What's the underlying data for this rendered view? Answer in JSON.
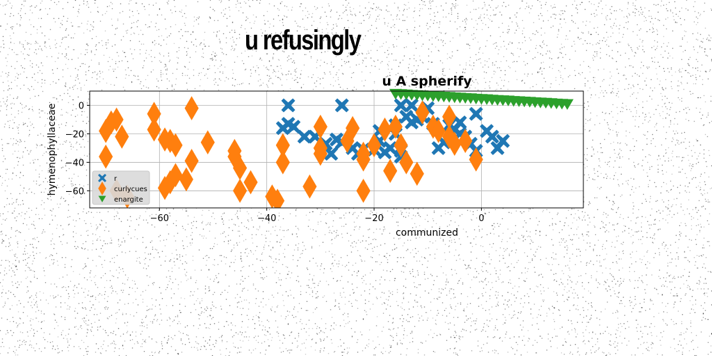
{
  "figure_title": "u refusingly",
  "colors": {
    "series_blue": "#1f77b4",
    "series_orange": "#ff7f0e",
    "series_green": "#2ca02c",
    "grid": "#b0b0b0"
  },
  "chart_data": {
    "type": "scatter",
    "title": "u A spherify",
    "xlabel": "communized",
    "ylabel": "hymenophyllaceae",
    "xlim": [
      -73,
      19
    ],
    "ylim": [
      -72,
      10
    ],
    "xticks": [
      -60,
      -40,
      -20,
      0
    ],
    "yticks": [
      0,
      -20,
      -40,
      -60
    ],
    "xtick_labels": [
      "−60",
      "−40",
      "−20",
      "0"
    ],
    "ytick_labels": [
      "0",
      "−20",
      "−40",
      "−60"
    ],
    "grid": true,
    "legend_position": "lower-left",
    "series": [
      {
        "name": "r",
        "marker": "X",
        "color": "#1f77b4",
        "points": [
          [
            -36,
            0
          ],
          [
            -26,
            0
          ],
          [
            -36,
            -13
          ],
          [
            -35,
            -15
          ],
          [
            -37,
            -16
          ],
          [
            -33,
            -22
          ],
          [
            -31,
            -22
          ],
          [
            -29,
            -27
          ],
          [
            -28,
            -34
          ],
          [
            -27,
            -24
          ],
          [
            -26,
            -26
          ],
          [
            -24,
            -30
          ],
          [
            -23,
            -34
          ],
          [
            -22,
            -31
          ],
          [
            -20,
            -31
          ],
          [
            -19,
            -18
          ],
          [
            -19,
            -25
          ],
          [
            -18,
            -33
          ],
          [
            -16,
            -20
          ],
          [
            -17,
            -30
          ],
          [
            -15,
            -32
          ],
          [
            -15,
            -36
          ],
          [
            -15,
            0
          ],
          [
            -14,
            -8
          ],
          [
            -13,
            0
          ],
          [
            -12,
            -10
          ],
          [
            -11,
            -8
          ],
          [
            -10,
            -2
          ],
          [
            -9,
            -13
          ],
          [
            -8,
            -30
          ],
          [
            -7,
            -26
          ],
          [
            -6,
            -14
          ],
          [
            -5,
            -17
          ],
          [
            -4,
            -12
          ],
          [
            -4,
            -20
          ],
          [
            -3,
            -22
          ],
          [
            -2,
            -27
          ],
          [
            -1,
            -6
          ],
          [
            -1,
            -32
          ],
          [
            1,
            -18
          ],
          [
            2,
            -22
          ],
          [
            3,
            -30
          ],
          [
            4,
            -25
          ],
          [
            -16,
            -14
          ],
          [
            -13,
            -12
          ]
        ]
      },
      {
        "name": "curlycues",
        "marker": "d",
        "color": "#ff7f0e",
        "points": [
          [
            -70,
            -18
          ],
          [
            -69,
            -12
          ],
          [
            -68,
            -10
          ],
          [
            -67,
            -22
          ],
          [
            -70,
            -36
          ],
          [
            -68,
            -60
          ],
          [
            -66,
            -64
          ],
          [
            -61,
            -6
          ],
          [
            -61,
            -17
          ],
          [
            -59,
            -24
          ],
          [
            -59,
            -58
          ],
          [
            -58,
            -25
          ],
          [
            -58,
            -54
          ],
          [
            -57,
            -28
          ],
          [
            -57,
            -49
          ],
          [
            -55,
            -52
          ],
          [
            -54,
            -2
          ],
          [
            -54,
            -39
          ],
          [
            -51,
            -26
          ],
          [
            -46,
            -32
          ],
          [
            -46,
            -36
          ],
          [
            -45,
            -44
          ],
          [
            -45,
            -60
          ],
          [
            -43,
            -54
          ],
          [
            -39,
            -64
          ],
          [
            -38,
            -67
          ],
          [
            -37,
            -28
          ],
          [
            -37,
            -40
          ],
          [
            -32,
            -57
          ],
          [
            -30,
            -15
          ],
          [
            -30,
            -30
          ],
          [
            -30,
            -34
          ],
          [
            -25,
            -25
          ],
          [
            -24,
            -16
          ],
          [
            -22,
            -38
          ],
          [
            -22,
            -34
          ],
          [
            -22,
            -60
          ],
          [
            -20,
            -28
          ],
          [
            -18,
            -17
          ],
          [
            -17,
            -46
          ],
          [
            -16,
            -15
          ],
          [
            -15,
            -28
          ],
          [
            -14,
            -40
          ],
          [
            -12,
            -48
          ],
          [
            -11,
            -5
          ],
          [
            -9,
            -15
          ],
          [
            -8,
            -18
          ],
          [
            -6,
            -8
          ],
          [
            -6,
            -22
          ],
          [
            -5,
            -27
          ],
          [
            -3,
            -25
          ],
          [
            -1,
            -38
          ]
        ]
      },
      {
        "name": "enargite",
        "marker": "v",
        "color": "#2ca02c",
        "points": [
          [
            -16,
            8
          ],
          [
            -14,
            7.6
          ],
          [
            -12,
            7.1
          ],
          [
            -10,
            6.7
          ],
          [
            -8,
            6.2
          ],
          [
            -6,
            5.8
          ],
          [
            -4,
            5.3
          ],
          [
            -2,
            4.9
          ],
          [
            0,
            4.4
          ],
          [
            2,
            3.9
          ],
          [
            4,
            3.5
          ],
          [
            6,
            3.0
          ],
          [
            8,
            2.6
          ],
          [
            10,
            2.1
          ],
          [
            12,
            1.7
          ],
          [
            14,
            1.2
          ],
          [
            16,
            0.8
          ],
          [
            -15,
            7.8
          ],
          [
            -13,
            7.3
          ],
          [
            -11,
            6.9
          ],
          [
            -9,
            6.4
          ],
          [
            -7,
            6.0
          ],
          [
            -5,
            5.5
          ],
          [
            -3,
            5.1
          ],
          [
            -1,
            4.6
          ],
          [
            1,
            4.2
          ],
          [
            3,
            3.7
          ],
          [
            5,
            3.3
          ],
          [
            7,
            2.8
          ],
          [
            9,
            2.4
          ],
          [
            11,
            1.9
          ],
          [
            13,
            1.5
          ],
          [
            15,
            1.0
          ]
        ]
      }
    ]
  }
}
